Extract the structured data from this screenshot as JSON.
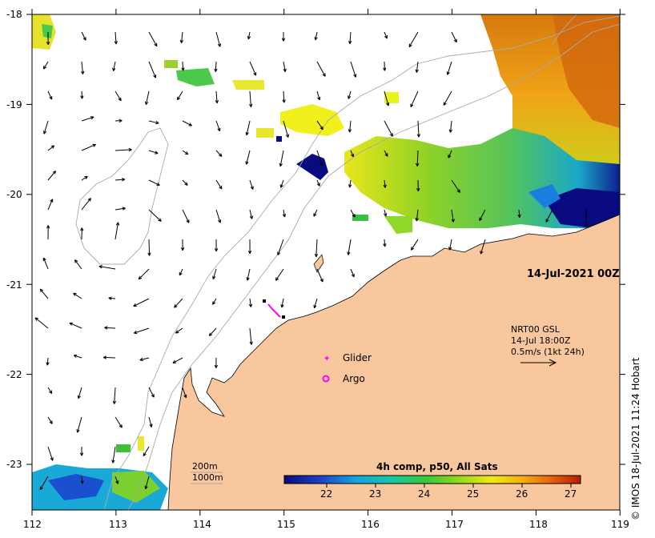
{
  "map": {
    "timestamp": "14-Jul-2021 00Z",
    "credit": "© IMOS 18-Jul-2021 11:24 Hobart",
    "lat_labels": [
      "-18",
      "-19",
      "-20",
      "-21",
      "-22",
      "-23"
    ],
    "lon_labels": [
      "112",
      "113",
      "114",
      "115",
      "116",
      "117",
      "118",
      "119"
    ],
    "current_legend": {
      "line1": "NRT00 GSL",
      "line2": "14-Jul 18:00Z",
      "line3": "0.5m/s (1kt 24h)"
    },
    "symbols": {
      "glider": "Glider",
      "argo": "Argo"
    },
    "depth_contours": {
      "c200": "200m",
      "c1000": "1000m"
    },
    "colorbar": {
      "title": "4h comp, p50, All Sats",
      "ticks": [
        "22",
        "23",
        "24",
        "25",
        "26",
        "27"
      ]
    },
    "colors": {
      "land": "#f9c79d",
      "ocean": "#ffffff",
      "glider": "#ff00ff",
      "argo": "#ff00ff"
    }
  }
}
